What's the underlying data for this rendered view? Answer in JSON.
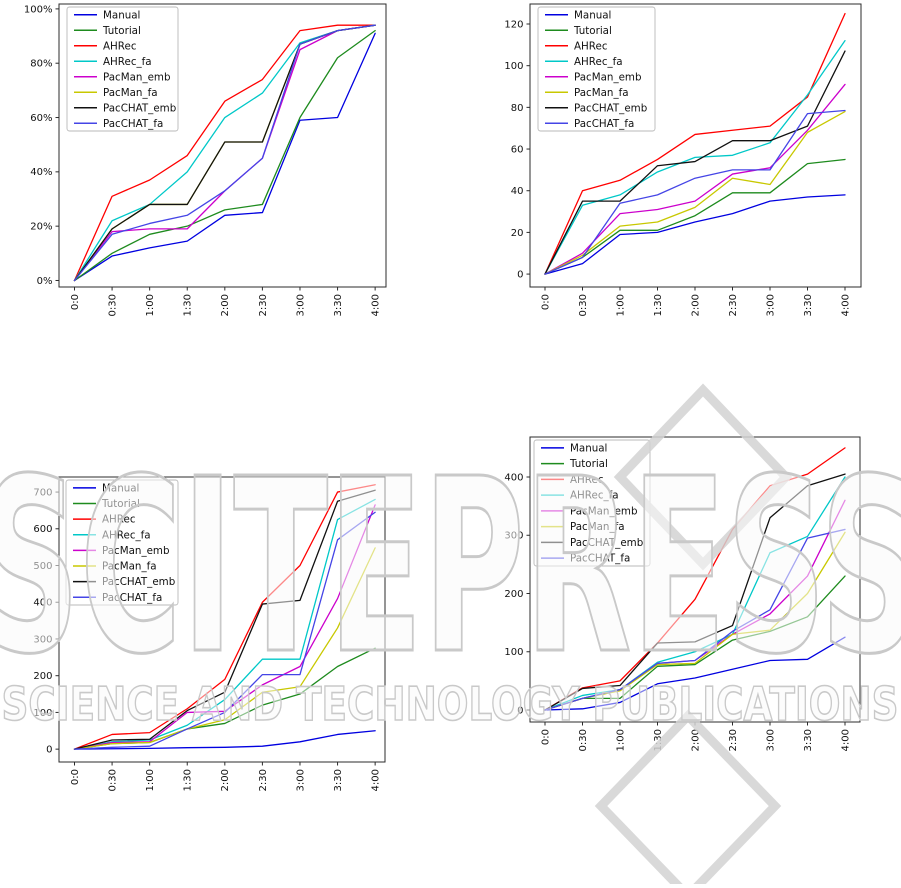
{
  "watermark": {
    "title": "SCITEPRESS",
    "subtitle": "SCIENCE AND TECHNOLOGY PUBLICATIONS"
  },
  "chart_data": [
    {
      "id": "top-left",
      "type": "line",
      "position": "top-left",
      "title": "",
      "xlabel": "",
      "ylabel": "",
      "grid": false,
      "legend_position": "upper left",
      "x_categories": [
        "0:0",
        "0:30",
        "1:00",
        "1:30",
        "2:00",
        "2:30",
        "3:00",
        "3:30",
        "4:00"
      ],
      "ylim": [
        -2.4,
        101.8
      ],
      "ytick_values": [
        0,
        20,
        40,
        60,
        80,
        100
      ],
      "ytick_labels": [
        "0%",
        "20%",
        "40%",
        "60%",
        "80%",
        "100%"
      ],
      "series": [
        {
          "name": "Manual",
          "color": "#0000e0",
          "values": [
            0,
            9,
            12,
            14.5,
            24,
            25,
            59,
            60,
            91
          ]
        },
        {
          "name": "Tutorial",
          "color": "#1e8b1e",
          "values": [
            0,
            10,
            17,
            20,
            26,
            28,
            60,
            82,
            92
          ]
        },
        {
          "name": "AHRec",
          "color": "#ff0000",
          "values": [
            0,
            31,
            37,
            46,
            66,
            74,
            92,
            94,
            94
          ]
        },
        {
          "name": "AHRec_fa",
          "color": "#00c8c8",
          "values": [
            0,
            22,
            28,
            40,
            60,
            69,
            87.5,
            92,
            94
          ]
        },
        {
          "name": "PacMan_emb",
          "color": "#cc00cc",
          "values": [
            0,
            18,
            19,
            19,
            33,
            45,
            85,
            92,
            94
          ]
        },
        {
          "name": "PacMan_fa",
          "color": "#c8c800",
          "values": [
            0,
            19,
            28,
            28,
            51,
            51,
            87,
            92,
            94
          ]
        },
        {
          "name": "PacCHAT_emb",
          "color": "#111111",
          "values": [
            0,
            19,
            28,
            28,
            51,
            51,
            87,
            92,
            94
          ]
        },
        {
          "name": "PacCHAT_fa",
          "color": "#4545e6",
          "values": [
            0,
            17,
            21,
            24,
            33,
            45,
            87,
            92,
            94
          ]
        }
      ]
    },
    {
      "id": "top-right",
      "type": "line",
      "position": "top-right",
      "title": "",
      "xlabel": "",
      "ylabel": "",
      "grid": false,
      "legend_position": "upper left",
      "x_categories": [
        "0:0",
        "0:30",
        "1:00",
        "1:30",
        "2:00",
        "2:30",
        "3:00",
        "3:30",
        "4:00"
      ],
      "ylim": [
        -6.2,
        129.6
      ],
      "ytick_values": [
        0,
        20,
        40,
        60,
        80,
        100,
        120
      ],
      "ytick_labels": [
        "0",
        "20",
        "40",
        "60",
        "80",
        "100",
        "120"
      ],
      "series": [
        {
          "name": "Manual",
          "color": "#0000e0",
          "values": [
            0,
            5,
            19,
            20,
            25,
            29,
            35,
            37,
            38
          ]
        },
        {
          "name": "Tutorial",
          "color": "#1e8b1e",
          "values": [
            0,
            8,
            21,
            21,
            28,
            39,
            39,
            53,
            55
          ]
        },
        {
          "name": "AHRec",
          "color": "#ff0000",
          "values": [
            0,
            40,
            45,
            55,
            67,
            69,
            71,
            85,
            125
          ]
        },
        {
          "name": "AHRec_fa",
          "color": "#00c8c8",
          "values": [
            0,
            33,
            38,
            49,
            56,
            57,
            63,
            86,
            112
          ]
        },
        {
          "name": "PacMan_emb",
          "color": "#cc00cc",
          "values": [
            0,
            10,
            29,
            31,
            35,
            48,
            51,
            69,
            91
          ]
        },
        {
          "name": "PacMan_fa",
          "color": "#c8c800",
          "values": [
            0,
            9,
            23,
            25,
            32,
            46,
            43,
            68,
            78
          ]
        },
        {
          "name": "PacCHAT_emb",
          "color": "#111111",
          "values": [
            0,
            35,
            35,
            52,
            54,
            64,
            64,
            71,
            107
          ]
        },
        {
          "name": "PacCHAT_fa",
          "color": "#4545e6",
          "values": [
            0,
            8,
            34,
            38,
            46,
            50,
            50,
            77,
            78.5
          ]
        }
      ]
    },
    {
      "id": "bottom-left",
      "type": "line",
      "position": "bottom-left",
      "title": "",
      "xlabel": "",
      "ylabel": "",
      "grid": false,
      "legend_position": "upper left",
      "x_categories": [
        "0:0",
        "0:30",
        "1:00",
        "1:30",
        "2:00",
        "2:30",
        "3:00",
        "3:30",
        "4:00"
      ],
      "ylim": [
        -35,
        741
      ],
      "ytick_values": [
        0,
        100,
        200,
        300,
        400,
        500,
        600,
        700
      ],
      "ytick_labels": [
        "0",
        "100",
        "200",
        "300",
        "400",
        "500",
        "600",
        "700"
      ],
      "series": [
        {
          "name": "Manual",
          "color": "#0000e0",
          "values": [
            0,
            1,
            2,
            4,
            5,
            8,
            20,
            40,
            50
          ]
        },
        {
          "name": "Tutorial",
          "color": "#1e8b1e",
          "values": [
            0,
            15,
            18,
            55,
            70,
            120,
            150,
            225,
            275
          ]
        },
        {
          "name": "AHRec",
          "color": "#ff0000",
          "values": [
            0,
            40,
            45,
            110,
            190,
            400,
            500,
            700,
            720
          ]
        },
        {
          "name": "AHRec_fa",
          "color": "#00c8c8",
          "values": [
            0,
            20,
            25,
            65,
            135,
            245,
            245,
            625,
            680
          ]
        },
        {
          "name": "PacMan_emb",
          "color": "#cc00cc",
          "values": [
            0,
            18,
            20,
            100,
            103,
            175,
            225,
            410,
            665
          ]
        },
        {
          "name": "PacMan_fa",
          "color": "#c8c800",
          "values": [
            0,
            15,
            18,
            55,
            80,
            155,
            170,
            330,
            548
          ]
        },
        {
          "name": "PacCHAT_emb",
          "color": "#111111",
          "values": [
            0,
            25,
            27,
            105,
            155,
            395,
            405,
            675,
            705
          ]
        },
        {
          "name": "PacCHAT_fa",
          "color": "#4545e6",
          "values": [
            0,
            5,
            8,
            55,
            100,
            203,
            203,
            570,
            645
          ]
        }
      ]
    },
    {
      "id": "bottom-right",
      "type": "line",
      "position": "bottom-right",
      "title": "",
      "xlabel": "",
      "ylabel": "",
      "grid": false,
      "legend_position": "upper left",
      "x_categories": [
        "0:0",
        "0:30",
        "1:00",
        "1:30",
        "2:00",
        "2:30",
        "3:00",
        "3:30",
        "4:00"
      ],
      "ylim": [
        -20.6,
        468.7
      ],
      "ytick_values": [
        0,
        100,
        200,
        300,
        400
      ],
      "ytick_labels": [
        "0",
        "100",
        "200",
        "300",
        "400"
      ],
      "series": [
        {
          "name": "Manual",
          "color": "#0000e0",
          "values": [
            0,
            2,
            13,
            45,
            55,
            70,
            85,
            87,
            125
          ]
        },
        {
          "name": "Tutorial",
          "color": "#1e8b1e",
          "values": [
            0,
            20,
            20,
            75,
            78,
            120,
            135,
            160,
            230
          ]
        },
        {
          "name": "AHRec",
          "color": "#ff0000",
          "values": [
            0,
            38,
            50,
            115,
            190,
            310,
            385,
            405,
            450
          ]
        },
        {
          "name": "AHRec_fa",
          "color": "#00c8c8",
          "values": [
            0,
            25,
            35,
            82,
            100,
            130,
            270,
            298,
            400
          ]
        },
        {
          "name": "PacMan_emb",
          "color": "#cc00cc",
          "values": [
            0,
            20,
            35,
            80,
            85,
            130,
            165,
            230,
            360
          ]
        },
        {
          "name": "PacMan_fa",
          "color": "#c8c800",
          "values": [
            0,
            20,
            33,
            78,
            80,
            130,
            137,
            200,
            305
          ]
        },
        {
          "name": "PacCHAT_emb",
          "color": "#111111",
          "values": [
            0,
            37,
            42,
            115,
            117,
            145,
            330,
            385,
            405
          ]
        },
        {
          "name": "PacCHAT_fa",
          "color": "#4545e6",
          "values": [
            0,
            20,
            35,
            80,
            85,
            135,
            172,
            295,
            310
          ]
        }
      ]
    }
  ]
}
